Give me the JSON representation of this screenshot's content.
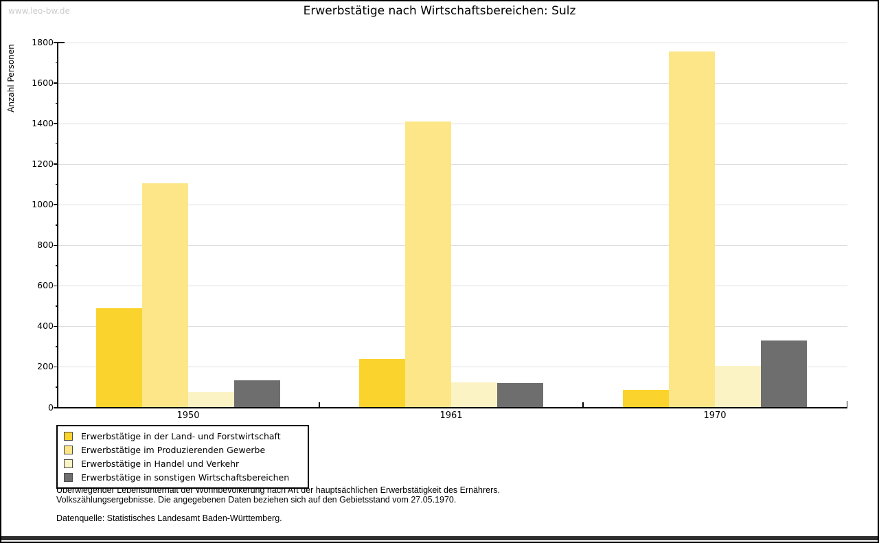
{
  "watermark": "www.leo-bw.de",
  "title": "Erwerbstätige nach Wirtschaftsbereichen: Sulz",
  "chart_data": {
    "type": "bar",
    "title": "Erwerbstätige nach Wirtschaftsbereichen: Sulz",
    "xlabel": "",
    "ylabel": "Anzahl Personen",
    "ylim": [
      0,
      1800
    ],
    "yticks": [
      0,
      200,
      400,
      600,
      800,
      1000,
      1200,
      1400,
      1600,
      1800
    ],
    "minor_tick_step": 100,
    "grid": true,
    "legend_position": "bottom-left",
    "categories": [
      "1950",
      "1961",
      "1970"
    ],
    "series": [
      {
        "name": "Erwerbstätige in der Land- und Forstwirtschaft",
        "color": "#FBD32D",
        "values": [
          490,
          240,
          85
        ]
      },
      {
        "name": "Erwerbstätige im Produzierenden Gewerbe",
        "color": "#FCE687",
        "values": [
          1105,
          1410,
          1755
        ]
      },
      {
        "name": "Erwerbstätige in Handel und Verkehr",
        "color": "#FCF3C5",
        "values": [
          75,
          125,
          205
        ]
      },
      {
        "name": "Erwerbstätige in sonstigen Wirtschaftsbereichen",
        "color": "#6E6E6E",
        "values": [
          135,
          120,
          330
        ]
      }
    ],
    "colors": {
      "grid": "#dddddd",
      "axis": "#000000",
      "watermark": "#cccccc",
      "bottom_bar": "#2e2e2e"
    }
  },
  "footnotes": {
    "line1": "Überwiegender Lebensunterhalt der Wohnbevölkerung nach Art der hauptsächlichen Erwerbstätigkeit des Ernährers.",
    "line2": "Volkszählungsergebnisse. Die angegebenen Daten beziehen sich auf den Gebietsstand vom 27.05.1970.",
    "source": "Datenquelle: Statistisches Landesamt Baden-Württemberg."
  }
}
